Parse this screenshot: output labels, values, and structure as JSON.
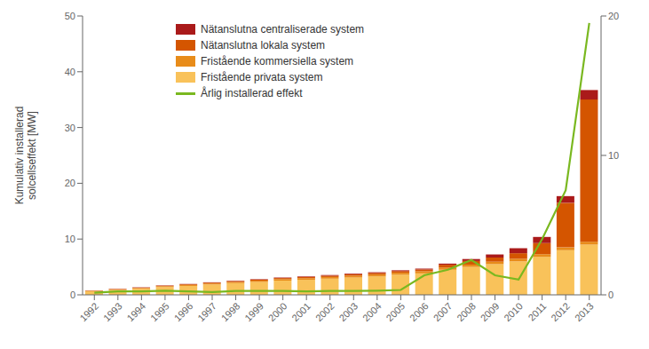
{
  "chart_data": {
    "type": "bar",
    "stacked": true,
    "categories": [
      "1992",
      "1993",
      "1994",
      "1995",
      "1996",
      "1997",
      "1998",
      "1999",
      "2000",
      "2001",
      "2002",
      "2003",
      "2004",
      "2005",
      "2006",
      "2007",
      "2008",
      "2009",
      "2010",
      "2011",
      "2012",
      "2013"
    ],
    "series": [
      {
        "name": "Fristående privata system",
        "color": "#f9c25a",
        "values": [
          0.65,
          0.9,
          1.1,
          1.4,
          1.6,
          1.85,
          2.1,
          2.3,
          2.55,
          2.7,
          2.9,
          3.1,
          3.3,
          3.6,
          3.85,
          4.5,
          5.0,
          5.5,
          6.0,
          6.8,
          8.0,
          9.0
        ]
      },
      {
        "name": "Fristående kommersiella system",
        "color": "#e88c1a",
        "values": [
          0.08,
          0.1,
          0.12,
          0.15,
          0.18,
          0.2,
          0.22,
          0.24,
          0.26,
          0.28,
          0.3,
          0.32,
          0.34,
          0.36,
          0.38,
          0.4,
          0.42,
          0.44,
          0.46,
          0.48,
          0.5,
          0.52
        ]
      },
      {
        "name": "Nätanslutna lokala system",
        "color": "#d45500",
        "values": [
          0.04,
          0.06,
          0.08,
          0.1,
          0.12,
          0.14,
          0.16,
          0.18,
          0.2,
          0.22,
          0.24,
          0.26,
          0.28,
          0.3,
          0.32,
          0.5,
          0.65,
          0.75,
          1.0,
          2.0,
          8.0,
          25.5
        ]
      },
      {
        "name": "Nätanslutna centraliserade system",
        "color": "#aa1a1a",
        "values": [
          0.03,
          0.04,
          0.05,
          0.05,
          0.05,
          0.06,
          0.07,
          0.08,
          0.09,
          0.1,
          0.11,
          0.12,
          0.13,
          0.14,
          0.15,
          0.2,
          0.35,
          0.55,
          0.9,
          1.1,
          1.2,
          1.7
        ]
      },
      {
        "name": "Årlig installerad effekt",
        "type": "line",
        "axis": "y2",
        "color": "#7ab820",
        "values": [
          0.15,
          0.25,
          0.25,
          0.3,
          0.25,
          0.2,
          0.28,
          0.28,
          0.28,
          0.25,
          0.28,
          0.28,
          0.3,
          0.35,
          1.4,
          1.8,
          2.5,
          1.4,
          1.1,
          4.0,
          7.5,
          19.5
        ]
      }
    ],
    "ylabel": "Kumulativ installerad\nsolcellseffekt [MW]",
    "ylim": [
      0,
      50
    ],
    "yticks": [
      0,
      10,
      20,
      30,
      40,
      50
    ],
    "y2lim": [
      0,
      20
    ],
    "y2ticks": [
      0,
      10,
      20
    ],
    "grid": false,
    "legend": "upper left"
  }
}
